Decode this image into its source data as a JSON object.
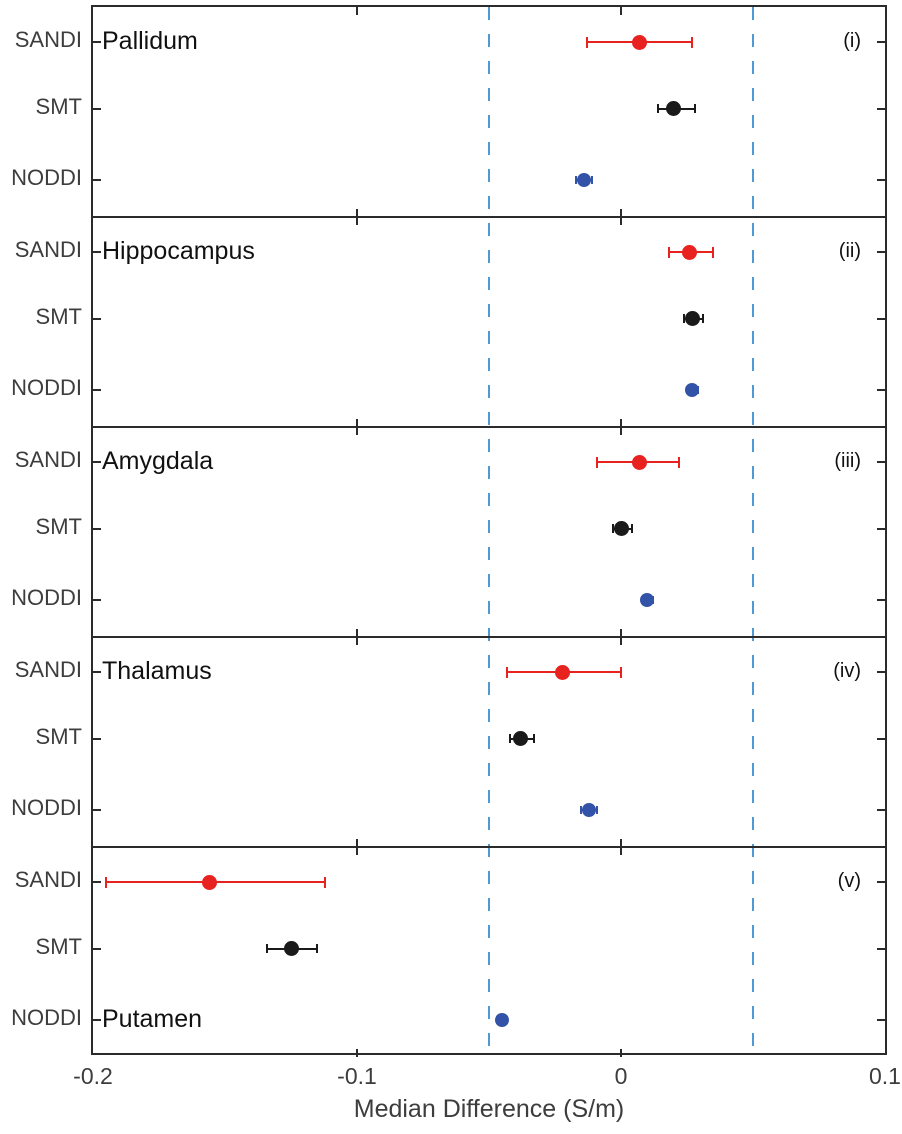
{
  "chart_data": {
    "type": "scatter",
    "variant": "horizontal dot plot with error bars (forest plot), 5 stacked panels",
    "xlabel": "Median Difference (S/m)",
    "xlim": [
      -0.2,
      0.1
    ],
    "xticks": [
      -0.2,
      -0.1,
      0,
      0.1
    ],
    "xtick_labels": [
      "-0.2",
      "-0.1",
      "0",
      "0.1"
    ],
    "grid": false,
    "reference_lines": {
      "values": [
        -0.05,
        0.05
      ],
      "style": "dashed",
      "color": "#4e9ad5"
    },
    "y_categories": [
      "SANDI",
      "SMT",
      "NODDI"
    ],
    "series_colors": {
      "SANDI": "#e8231f",
      "SMT": "#1a1a1a",
      "NODDI": "#3353a8"
    },
    "panels": [
      {
        "index_label": "(i)",
        "region": "Pallidum",
        "region_label_row": "top",
        "points": [
          {
            "model": "SANDI",
            "value": 0.007,
            "ci_low": -0.013,
            "ci_high": 0.027
          },
          {
            "model": "SMT",
            "value": 0.02,
            "ci_low": 0.014,
            "ci_high": 0.028
          },
          {
            "model": "NODDI",
            "value": -0.014,
            "ci_low": -0.017,
            "ci_high": -0.011
          }
        ]
      },
      {
        "index_label": "(ii)",
        "region": "Hippocampus",
        "region_label_row": "top",
        "points": [
          {
            "model": "SANDI",
            "value": 0.026,
            "ci_low": 0.018,
            "ci_high": 0.035
          },
          {
            "model": "SMT",
            "value": 0.027,
            "ci_low": 0.024,
            "ci_high": 0.031
          },
          {
            "model": "NODDI",
            "value": 0.027,
            "ci_low": 0.025,
            "ci_high": 0.029
          }
        ]
      },
      {
        "index_label": "(iii)",
        "region": "Amygdala",
        "region_label_row": "top",
        "points": [
          {
            "model": "SANDI",
            "value": 0.007,
            "ci_low": -0.009,
            "ci_high": 0.022
          },
          {
            "model": "SMT",
            "value": 0.0,
            "ci_low": -0.003,
            "ci_high": 0.004
          },
          {
            "model": "NODDI",
            "value": 0.01,
            "ci_low": 0.008,
            "ci_high": 0.012
          }
        ]
      },
      {
        "index_label": "(iv)",
        "region": "Thalamus",
        "region_label_row": "top",
        "points": [
          {
            "model": "SANDI",
            "value": -0.022,
            "ci_low": -0.043,
            "ci_high": 0.0
          },
          {
            "model": "SMT",
            "value": -0.038,
            "ci_low": -0.042,
            "ci_high": -0.033
          },
          {
            "model": "NODDI",
            "value": -0.012,
            "ci_low": -0.015,
            "ci_high": -0.009
          }
        ]
      },
      {
        "index_label": "(v)",
        "region": "Putamen",
        "region_label_row": "bottom",
        "points": [
          {
            "model": "SANDI",
            "value": -0.156,
            "ci_low": -0.195,
            "ci_high": -0.112
          },
          {
            "model": "SMT",
            "value": -0.125,
            "ci_low": -0.134,
            "ci_high": -0.115
          },
          {
            "model": "NODDI",
            "value": -0.045,
            "ci_low": -0.047,
            "ci_high": -0.043
          }
        ]
      }
    ]
  }
}
